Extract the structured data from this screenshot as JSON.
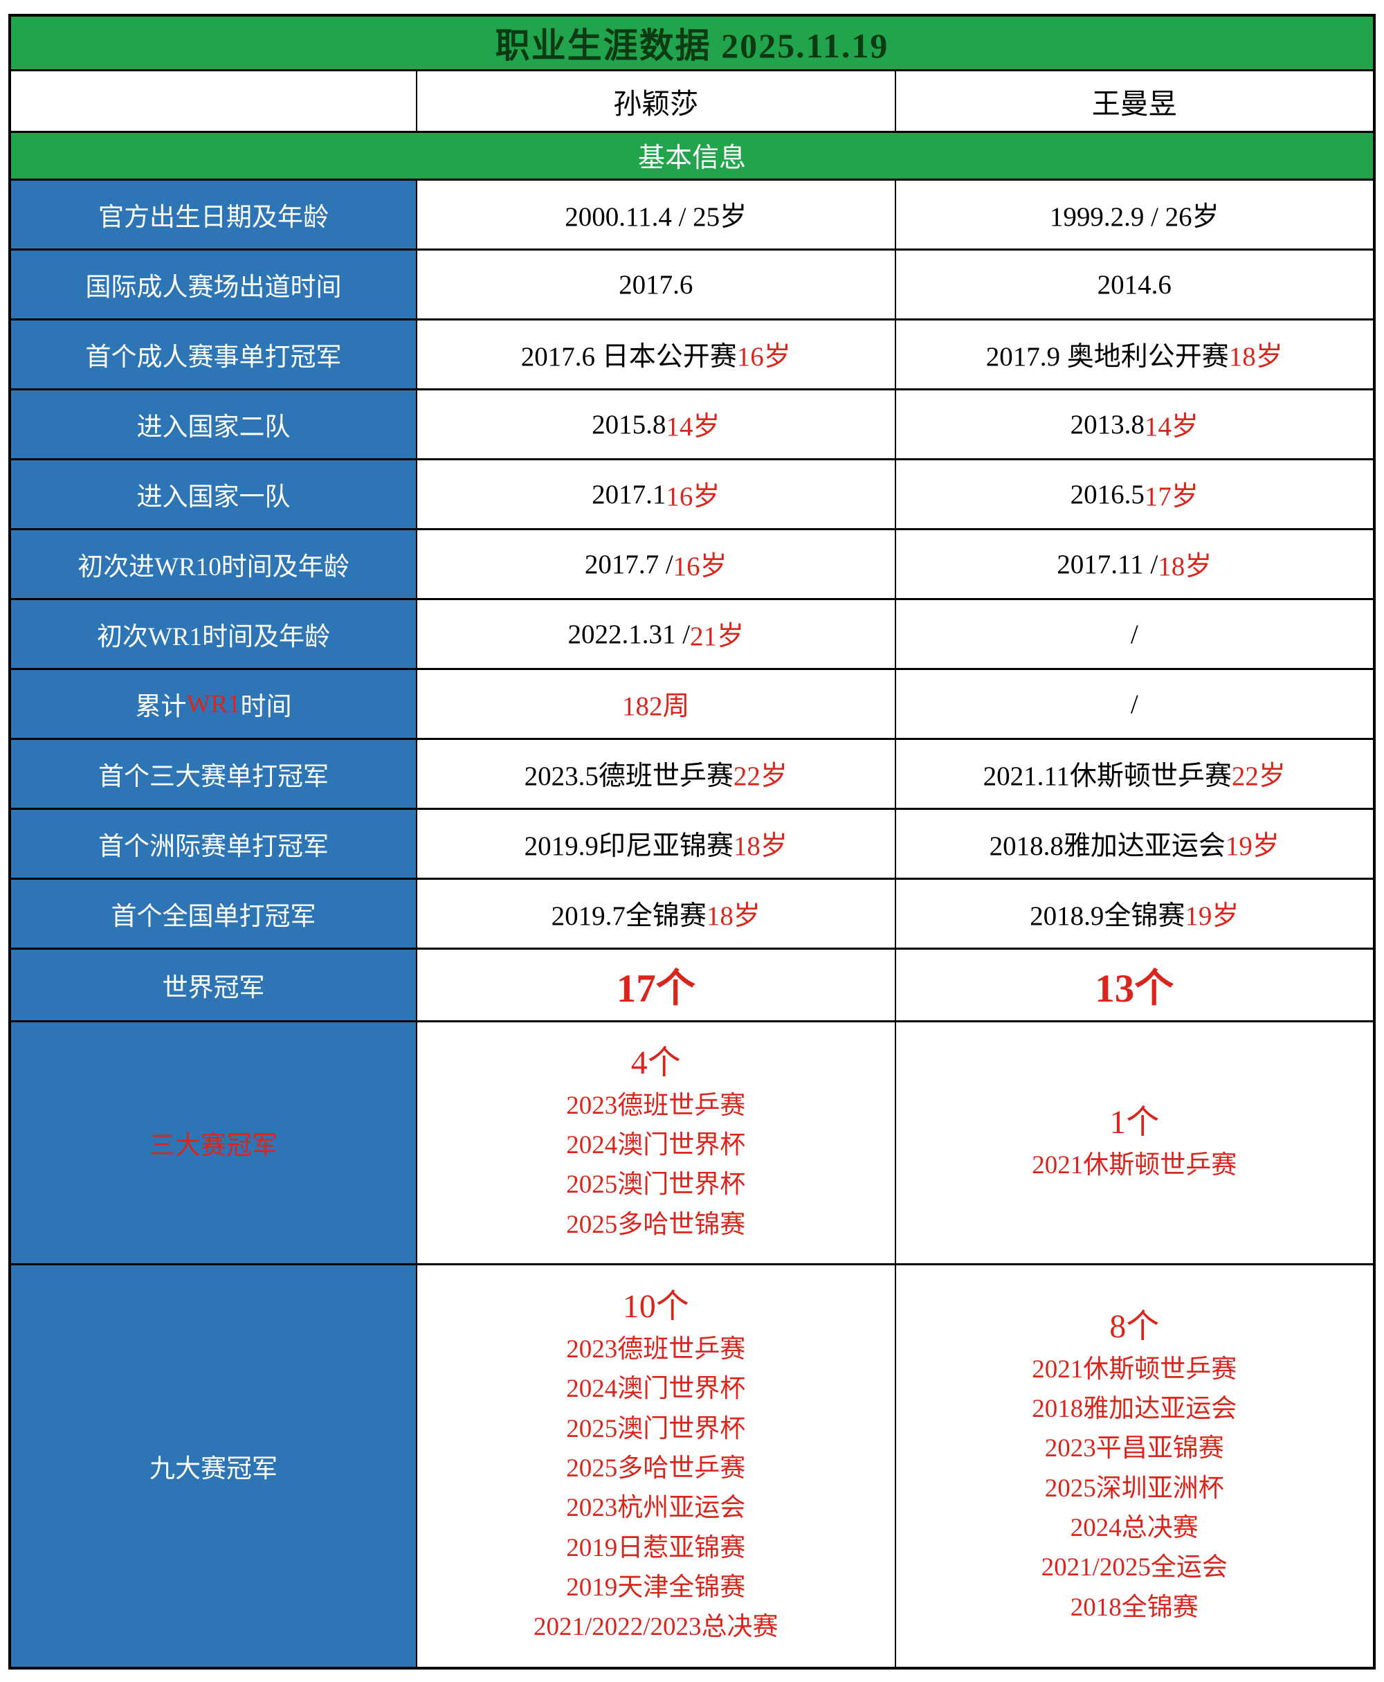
{
  "title": "职业生涯数据 2025.11.19",
  "section": "基本信息",
  "players": [
    "孙颖莎",
    "王曼昱"
  ],
  "colors": {
    "green_header": "#21a44b",
    "blue_label": "#2e75b6",
    "accent_red": "#d8261c",
    "title_text": "#0c3a12"
  },
  "rows": [
    {
      "kind": "data",
      "label": [
        {
          "t": "官方出生日期及年龄"
        }
      ],
      "cells": [
        [
          {
            "t": "2000.11.4 / 25岁"
          }
        ],
        [
          {
            "t": "1999.2.9 / 26岁"
          }
        ]
      ]
    },
    {
      "kind": "data",
      "label": [
        {
          "t": "国际成人赛场出道时间"
        }
      ],
      "cells": [
        [
          {
            "t": "2017.6"
          }
        ],
        [
          {
            "t": "2014.6"
          }
        ]
      ]
    },
    {
      "kind": "data",
      "label": [
        {
          "t": "首个成人赛事单打冠军"
        }
      ],
      "cells": [
        [
          {
            "t": "2017.6 日本公开赛 "
          },
          {
            "t": "16岁",
            "red": true
          }
        ],
        [
          {
            "t": "2017.9 奥地利公开赛 "
          },
          {
            "t": "18岁",
            "red": true
          }
        ]
      ]
    },
    {
      "kind": "data",
      "label": [
        {
          "t": "进入国家二队"
        }
      ],
      "cells": [
        [
          {
            "t": "2015.8 "
          },
          {
            "t": "14岁",
            "red": true
          }
        ],
        [
          {
            "t": "2013.8 "
          },
          {
            "t": "14岁",
            "red": true
          }
        ]
      ]
    },
    {
      "kind": "data",
      "label": [
        {
          "t": "进入国家一队"
        }
      ],
      "cells": [
        [
          {
            "t": "2017.1 "
          },
          {
            "t": "16岁",
            "red": true
          }
        ],
        [
          {
            "t": "2016.5 "
          },
          {
            "t": "17岁",
            "red": true
          }
        ]
      ]
    },
    {
      "kind": "data",
      "label": [
        {
          "t": "初次进WR10时间及年龄"
        }
      ],
      "cells": [
        [
          {
            "t": "2017.7 / "
          },
          {
            "t": "16岁",
            "red": true
          }
        ],
        [
          {
            "t": "2017.11 / "
          },
          {
            "t": "18岁",
            "red": true
          }
        ]
      ]
    },
    {
      "kind": "data",
      "label": [
        {
          "t": "初次WR1时间及年龄"
        }
      ],
      "cells": [
        [
          {
            "t": "2022.1.31 / "
          },
          {
            "t": "21岁",
            "red": true
          }
        ],
        [
          {
            "t": "/"
          }
        ]
      ]
    },
    {
      "kind": "data",
      "label": [
        {
          "t": "累计"
        },
        {
          "t": "WR1",
          "red": true
        },
        {
          "t": "时间"
        }
      ],
      "cells": [
        [
          {
            "t": "182周",
            "red": true
          }
        ],
        [
          {
            "t": "/"
          }
        ]
      ]
    },
    {
      "kind": "data",
      "label": [
        {
          "t": "首个三大赛单打冠军"
        }
      ],
      "cells": [
        [
          {
            "t": "2023.5德班世乒赛 "
          },
          {
            "t": "22岁",
            "red": true
          }
        ],
        [
          {
            "t": "2021.11休斯顿世乒赛 "
          },
          {
            "t": "22岁",
            "red": true
          }
        ]
      ]
    },
    {
      "kind": "data",
      "label": [
        {
          "t": "首个洲际赛单打冠军"
        }
      ],
      "cells": [
        [
          {
            "t": "2019.9印尼亚锦赛 "
          },
          {
            "t": "18岁",
            "red": true
          }
        ],
        [
          {
            "t": "2018.8雅加达亚运会 "
          },
          {
            "t": "19岁",
            "red": true
          }
        ]
      ]
    },
    {
      "kind": "data",
      "label": [
        {
          "t": "首个全国单打冠军"
        }
      ],
      "cells": [
        [
          {
            "t": "2019.7全锦赛 "
          },
          {
            "t": "18岁",
            "red": true
          }
        ],
        [
          {
            "t": "2018.9全锦赛 "
          },
          {
            "t": "19岁",
            "red": true
          }
        ]
      ]
    },
    {
      "kind": "big",
      "label": [
        {
          "t": "世界冠军"
        }
      ],
      "cells": [
        [
          {
            "t": "17个",
            "red": true
          }
        ],
        [
          {
            "t": "13个",
            "red": true
          }
        ]
      ]
    },
    {
      "kind": "list",
      "size": "small",
      "label": [
        {
          "t": "三大赛冠军",
          "red": true
        }
      ],
      "cells": [
        {
          "count": "4个",
          "items": [
            "2023德班世乒赛",
            "2024澳门世界杯",
            "2025澳门世界杯",
            "2025多哈世锦赛"
          ]
        },
        {
          "count": "1个",
          "items": [
            "2021休斯顿世乒赛"
          ]
        }
      ]
    },
    {
      "kind": "list",
      "size": "large",
      "label": [
        {
          "t": "九大赛冠军"
        }
      ],
      "cells": [
        {
          "count": "10个",
          "items": [
            "2023德班世乒赛",
            "2024澳门世界杯",
            "2025澳门世界杯",
            "2025多哈世乒赛",
            "2023杭州亚运会",
            "2019日惹亚锦赛",
            "2019天津全锦赛",
            "2021/2022/2023总决赛"
          ]
        },
        {
          "count": "8个",
          "items": [
            "2021休斯顿世乒赛",
            "2018雅加达亚运会",
            "2023平昌亚锦赛",
            "2025深圳亚洲杯",
            "2024总决赛",
            "2021/2025全运会",
            "2018全锦赛"
          ]
        }
      ]
    }
  ]
}
